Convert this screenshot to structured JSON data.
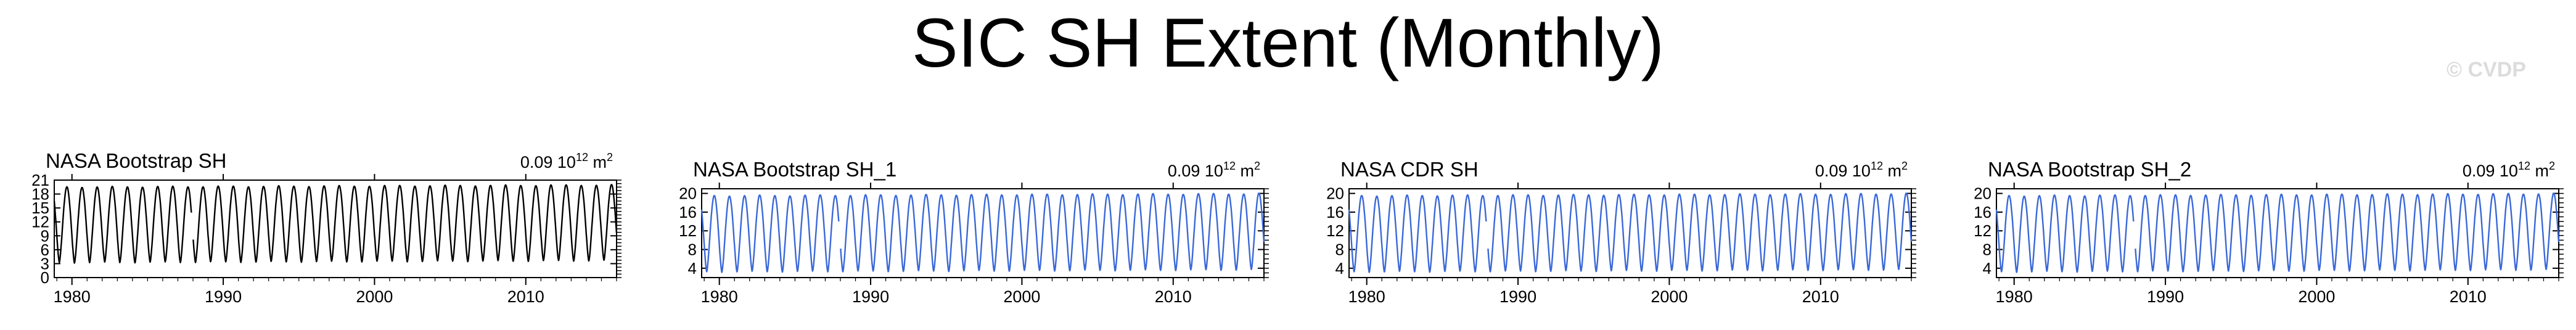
{
  "page": {
    "title": "SIC SH Extent (Monthly)",
    "watermark": "© CVDP"
  },
  "chart_data": [
    {
      "type": "line",
      "title": "NASA Bootstrap SH",
      "annotation": "0.09 10^12 m^2",
      "annotation_parts": {
        "base": "0.09 10",
        "exp": "12",
        "unit": " m",
        "unit_exp": "2"
      },
      "color": "#000000",
      "xlim": [
        1978.83,
        2016.0
      ],
      "ylim": [
        0,
        21
      ],
      "xticks": [
        1980,
        1990,
        2000,
        2010
      ],
      "yticks": [
        0,
        3,
        6,
        9,
        12,
        15,
        18,
        21
      ],
      "series_range": {
        "start": 1978.83,
        "end": 2016.0,
        "min_extent": 3.2,
        "max_extent": 19.5
      },
      "data_gap": [
        1987.9,
        1988.0
      ],
      "frequency": "monthly"
    },
    {
      "type": "line",
      "title": "NASA Bootstrap SH_1",
      "annotation": "0.09 10^12 m^2",
      "annotation_parts": {
        "base": "0.09 10",
        "exp": "12",
        "unit": " m",
        "unit_exp": "2"
      },
      "color": "#3a68d8",
      "xlim": [
        1978.83,
        2016.0
      ],
      "ylim": [
        2,
        21
      ],
      "xticks": [
        1980,
        1990,
        2000,
        2010
      ],
      "yticks": [
        4,
        8,
        12,
        16,
        20
      ],
      "series_range": {
        "start": 1978.83,
        "end": 2016.0,
        "min_extent": 3.2,
        "max_extent": 19.5
      },
      "data_gap": [
        1987.9,
        1988.0
      ],
      "frequency": "monthly"
    },
    {
      "type": "line",
      "title": "NASA CDR SH",
      "annotation": "0.09 10^12 m^2",
      "annotation_parts": {
        "base": "0.09 10",
        "exp": "12",
        "unit": " m",
        "unit_exp": "2"
      },
      "color": "#3a68d8",
      "xlim": [
        1978.83,
        2016.0
      ],
      "ylim": [
        2,
        21
      ],
      "xticks": [
        1980,
        1990,
        2000,
        2010
      ],
      "yticks": [
        4,
        8,
        12,
        16,
        20
      ],
      "series_range": {
        "start": 1978.83,
        "end": 2016.0,
        "min_extent": 3.2,
        "max_extent": 19.5
      },
      "data_gap": [
        1987.9,
        1988.0
      ],
      "frequency": "monthly"
    },
    {
      "type": "line",
      "title": "NASA Bootstrap SH_2",
      "annotation": "0.09 10^12 m^2",
      "annotation_parts": {
        "base": "0.09 10",
        "exp": "12",
        "unit": " m",
        "unit_exp": "2"
      },
      "color": "#3a68d8",
      "xlim": [
        1978.83,
        2016.0
      ],
      "ylim": [
        2,
        21
      ],
      "xticks": [
        1980,
        1990,
        2000,
        2010
      ],
      "yticks": [
        4,
        8,
        12,
        16,
        20
      ],
      "series_range": {
        "start": 1978.83,
        "end": 2016.0,
        "min_extent": 3.2,
        "max_extent": 19.5
      },
      "data_gap": [
        1987.9,
        1988.0
      ],
      "frequency": "monthly"
    }
  ]
}
